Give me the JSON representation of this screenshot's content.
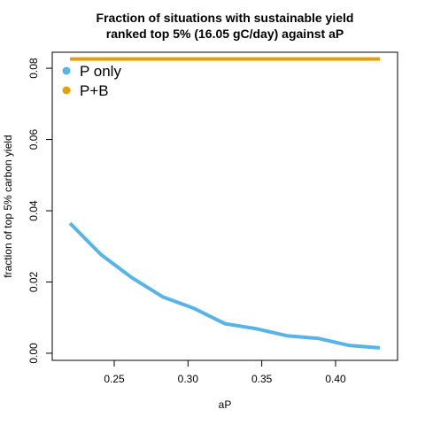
{
  "chart_data": {
    "type": "line",
    "title": "Fraction of situations with sustainable yield",
    "subtitle": "ranked top 5% (16.05 gC/day) against aP",
    "xlabel": "aP",
    "ylabel": "fraction of top 5% carbon yield",
    "xlim": [
      0.208,
      0.442
    ],
    "ylim": [
      -0.002,
      0.0845
    ],
    "x_ticks": [
      0.25,
      0.3,
      0.35,
      0.4
    ],
    "x_tick_labels": [
      "0.25",
      "0.30",
      "0.35",
      "0.40"
    ],
    "y_ticks": [
      0.0,
      0.02,
      0.04,
      0.06,
      0.08
    ],
    "y_tick_labels": [
      "0.00",
      "0.02",
      "0.04",
      "0.06",
      "0.08"
    ],
    "grid": false,
    "legend_position": "top-left",
    "x": [
      0.22,
      0.241,
      0.262,
      0.283,
      0.304,
      0.325,
      0.346,
      0.367,
      0.388,
      0.409,
      0.43
    ],
    "series": [
      {
        "name": "P only",
        "color": "#56B4E9",
        "values": [
          0.0365,
          0.0277,
          0.0212,
          0.0158,
          0.0126,
          0.0083,
          0.0069,
          0.0049,
          0.0042,
          0.0022,
          0.0015
        ]
      },
      {
        "name": "P+B",
        "color": "#E69F00",
        "values": [
          0.0826,
          0.0826,
          0.0826,
          0.0826,
          0.0826,
          0.0826,
          0.0826,
          0.0826,
          0.0826,
          0.0826,
          0.0826
        ]
      }
    ]
  }
}
